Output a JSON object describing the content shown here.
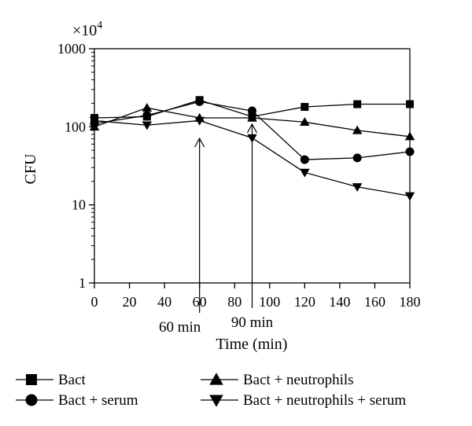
{
  "chart_data": {
    "type": "line",
    "multiplier_label": "×10",
    "multiplier_exponent": "4",
    "xlabel": "Time (min)",
    "ylabel": "CFU",
    "xlim": [
      0,
      180
    ],
    "ylim": [
      1,
      1000
    ],
    "yscale": "log",
    "x_ticks": [
      0,
      20,
      40,
      60,
      80,
      100,
      120,
      140,
      160,
      180
    ],
    "y_ticks": [
      {
        "value": 1,
        "label": "1"
      },
      {
        "value": 10,
        "label": "10"
      },
      {
        "value": 100,
        "label": "100"
      },
      {
        "value": 1000,
        "label": "1000"
      }
    ],
    "annotations": [
      {
        "x": 60,
        "label": "60 min"
      },
      {
        "x": 90,
        "label": "90 min"
      }
    ],
    "series": [
      {
        "name": "Bact",
        "marker": "square",
        "x": [
          0,
          30,
          60,
          90,
          120,
          150,
          180
        ],
        "y": [
          130,
          135,
          220,
          135,
          180,
          195,
          195
        ]
      },
      {
        "name": "Bact + serum",
        "marker": "circle",
        "x": [
          0,
          30,
          60,
          90,
          120,
          150,
          180
        ],
        "y": [
          110,
          140,
          210,
          160,
          38,
          40,
          48
        ]
      },
      {
        "name": "Bact + neutrophils",
        "marker": "triangle-up",
        "x": [
          0,
          30,
          60,
          90,
          120,
          150,
          180
        ],
        "y": [
          100,
          175,
          130,
          130,
          115,
          90,
          75
        ]
      },
      {
        "name": "Bact + neutrophils + serum",
        "marker": "triangle-down",
        "x": [
          0,
          30,
          60,
          90,
          120,
          150,
          180
        ],
        "y": [
          120,
          105,
          120,
          72,
          26,
          17,
          13
        ]
      }
    ]
  }
}
